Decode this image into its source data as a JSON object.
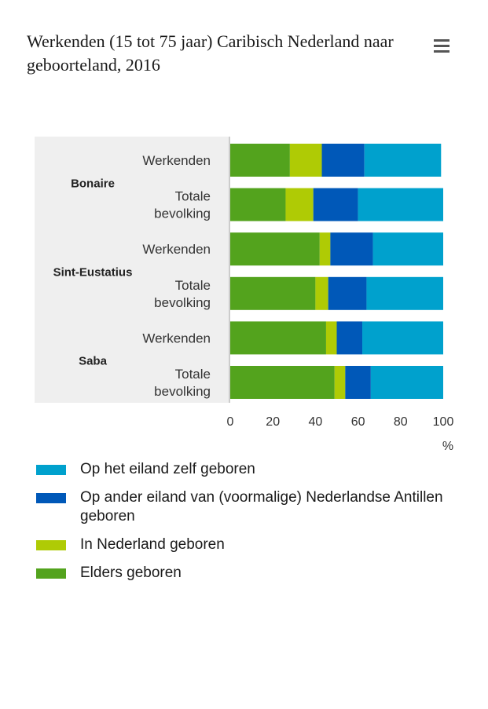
{
  "title": "Werkenden (15 tot 75 jaar) Caribisch Nederland naar geboorteland, 2016",
  "menu_icon": "hamburger-menu-icon",
  "chart_data": {
    "type": "bar",
    "orientation": "horizontal",
    "stacked": true,
    "groups": [
      {
        "name": "Bonaire",
        "categories": [
          "Werkenden",
          "Totale bevolking"
        ]
      },
      {
        "name": "Sint-Eustatius",
        "categories": [
          "Werkenden",
          "Totale bevolking"
        ]
      },
      {
        "name": "Saba",
        "categories": [
          "Werkenden",
          "Totale bevolking"
        ]
      }
    ],
    "category_labels": [
      "Werkenden",
      "Totale|bevolking",
      "Werkenden",
      "Totale|bevolking",
      "Werkenden",
      "Totale|bevolking"
    ],
    "series": [
      {
        "name": "Elders geboren",
        "color": "#53a31d",
        "values": [
          28,
          26,
          42,
          40,
          45,
          49
        ]
      },
      {
        "name": "In Nederland geboren",
        "color": "#afcb05",
        "values": [
          15,
          13,
          5,
          6,
          5,
          5
        ]
      },
      {
        "name": "Op ander eiland van (voormalige) Nederlandse Antillen geboren",
        "color": "#0058b8",
        "values": [
          20,
          21,
          20,
          18,
          12,
          12
        ]
      },
      {
        "name": "Op het eiland zelf geboren",
        "color": "#00a1cd",
        "values": [
          36,
          40,
          33,
          36,
          38,
          34
        ]
      }
    ],
    "xlim": [
      0,
      100
    ],
    "x_ticks": [
      0,
      20,
      40,
      60,
      80,
      100
    ],
    "xlabel": "%",
    "ylabel": "",
    "grid": false,
    "legend_placement": "bottom",
    "legend_order": [
      3,
      2,
      1,
      0
    ]
  }
}
